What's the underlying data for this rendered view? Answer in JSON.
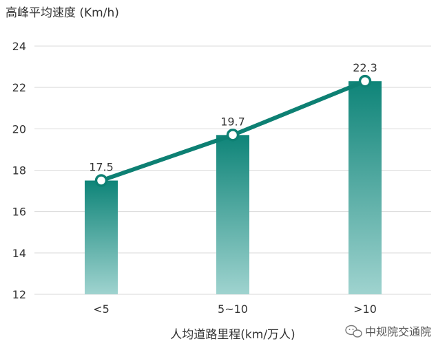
{
  "chart_data": {
    "type": "bar",
    "title": "",
    "ylabel": "高峰平均速度 (Km/h)",
    "xlabel": "人均道路里程(km/万人)",
    "categories": [
      "<5",
      "5~10",
      ">10"
    ],
    "series": [
      {
        "values": [
          17.5,
          19.7,
          22.3
        ]
      }
    ],
    "line_overlay_values": [
      17.5,
      19.7,
      22.3
    ],
    "data_labels": [
      "17.5",
      "19.7",
      "22.3"
    ],
    "ylim": [
      12,
      24
    ],
    "y_ticks": [
      "24",
      "22",
      "20",
      "18",
      "16",
      "14",
      "12"
    ],
    "grid": true,
    "colors": {
      "bar_top": "#0e8478",
      "bar_bottom": "#9fd3cf",
      "line": "#0d8073",
      "grid": "#d9d9d9"
    }
  },
  "watermark": {
    "text": "中规院交通院",
    "icon": "wechat-icon"
  }
}
